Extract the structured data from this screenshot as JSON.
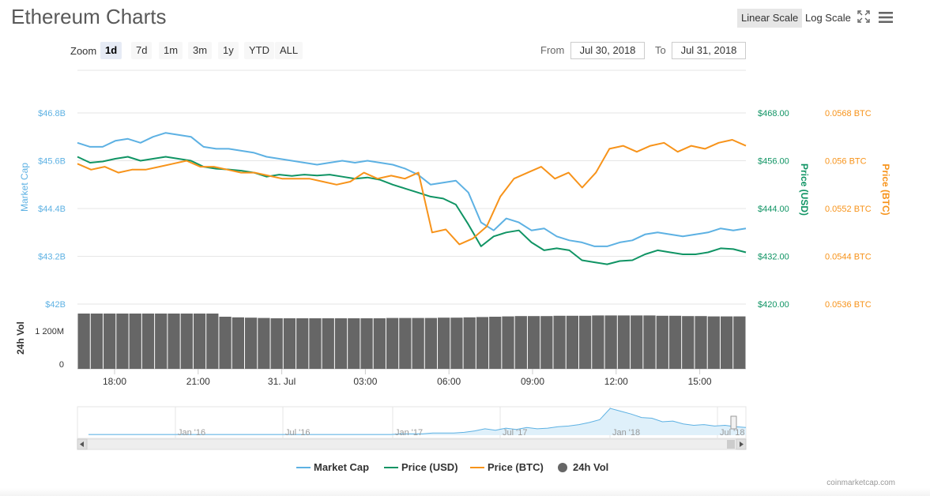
{
  "title": "Ethereum Charts",
  "scale": {
    "linear": "Linear Scale",
    "log": "Log Scale"
  },
  "zoom": {
    "label": "Zoom",
    "options": [
      "1d",
      "7d",
      "1m",
      "3m",
      "1y",
      "YTD",
      "ALL"
    ],
    "active": "1d"
  },
  "range": {
    "from_label": "From",
    "from": "Jul 30, 2018",
    "to_label": "To",
    "to": "Jul 31, 2018"
  },
  "icons": {
    "fullscreen": "fullscreen-icon",
    "menu": "hamburger-menu-icon"
  },
  "colors": {
    "market_cap": "#5db1e3",
    "price_usd": "#109464",
    "price_btc": "#f7931a",
    "volume": "#666666",
    "grid": "#e6e6e6"
  },
  "credit": "coinmarketcap.com",
  "chart_data": {
    "type": "line",
    "x_tick_labels": [
      "18:00",
      "21:00",
      "31. Jul",
      "03:00",
      "06:00",
      "09:00",
      "12:00",
      "15:00"
    ],
    "axes": {
      "market_cap": {
        "label": "Market Cap",
        "ticks": [
          "$46.8B",
          "$45.6B",
          "$44.4B",
          "$43.2B",
          "$42B"
        ],
        "range": [
          42,
          46.8
        ],
        "unit": "B USD"
      },
      "price_usd": {
        "label": "Price (USD)",
        "ticks": [
          "$468.00",
          "$456.00",
          "$444.00",
          "$432.00",
          "$420.00"
        ],
        "range": [
          420,
          468
        ]
      },
      "price_btc": {
        "label": "Price (BTC)",
        "ticks": [
          "0.0568 BTC",
          "0.056 BTC",
          "0.0552 BTC",
          "0.0544 BTC",
          "0.0536 BTC"
        ],
        "range": [
          0.0536,
          0.0568
        ]
      },
      "volume": {
        "label": "24h Vol",
        "ticks": [
          "1 200M",
          "0"
        ],
        "range": [
          0,
          1800
        ]
      }
    },
    "series": [
      {
        "name": "Market Cap",
        "axis": "market_cap",
        "values": [
          46.05,
          45.95,
          45.95,
          46.1,
          46.15,
          46.05,
          46.2,
          46.3,
          46.25,
          46.2,
          45.95,
          45.9,
          45.9,
          45.85,
          45.8,
          45.7,
          45.65,
          45.6,
          45.55,
          45.5,
          45.55,
          45.6,
          45.55,
          45.6,
          45.55,
          45.5,
          45.4,
          45.25,
          45.0,
          45.05,
          45.1,
          44.8,
          44.05,
          43.85,
          44.15,
          44.05,
          43.85,
          43.9,
          43.7,
          43.6,
          43.55,
          43.45,
          43.45,
          43.55,
          43.6,
          43.75,
          43.8,
          43.75,
          43.7,
          43.75,
          43.8,
          43.9,
          43.85,
          43.9
        ]
      },
      {
        "name": "Price (USD)",
        "axis": "price_usd",
        "values": [
          457.0,
          455.5,
          455.8,
          456.5,
          457.0,
          456.0,
          456.5,
          457.0,
          456.5,
          456.0,
          454.5,
          454.0,
          453.8,
          453.5,
          453.0,
          452.0,
          452.5,
          452.2,
          452.5,
          452.3,
          452.5,
          452.0,
          451.5,
          451.8,
          451.2,
          450.0,
          449.0,
          448.0,
          447.0,
          446.5,
          445.0,
          440.0,
          434.5,
          437.0,
          438.0,
          438.5,
          435.5,
          433.5,
          434.0,
          433.5,
          431.0,
          430.5,
          430.0,
          430.8,
          431.0,
          432.5,
          433.5,
          433.0,
          432.5,
          432.5,
          433.0,
          434.0,
          433.8,
          433.0
        ]
      },
      {
        "name": "Price (BTC)",
        "axis": "price_btc",
        "values": [
          0.05595,
          0.05585,
          0.0559,
          0.0558,
          0.05585,
          0.05585,
          0.0559,
          0.05595,
          0.056,
          0.0559,
          0.0559,
          0.05585,
          0.0558,
          0.0558,
          0.05575,
          0.0557,
          0.0557,
          0.0557,
          0.05565,
          0.0556,
          0.05565,
          0.0558,
          0.0557,
          0.05575,
          0.0557,
          0.0558,
          0.0548,
          0.05485,
          0.0546,
          0.0547,
          0.0549,
          0.0554,
          0.0557,
          0.0558,
          0.0559,
          0.0557,
          0.0558,
          0.05555,
          0.0558,
          0.0562,
          0.05625,
          0.05615,
          0.05625,
          0.0563,
          0.05615,
          0.05625,
          0.0562,
          0.0563,
          0.05635,
          0.05625
        ]
      },
      {
        "name": "24h Vol",
        "axis": "volume",
        "kind": "column",
        "values": [
          1750,
          1750,
          1750,
          1750,
          1750,
          1750,
          1750,
          1750,
          1750,
          1750,
          1750,
          1650,
          1630,
          1620,
          1610,
          1600,
          1600,
          1600,
          1600,
          1600,
          1600,
          1600,
          1600,
          1600,
          1610,
          1610,
          1610,
          1610,
          1620,
          1620,
          1630,
          1640,
          1650,
          1660,
          1670,
          1670,
          1670,
          1680,
          1680,
          1680,
          1690,
          1690,
          1690,
          1690,
          1690,
          1680,
          1680,
          1670,
          1670,
          1660,
          1660,
          1660
        ]
      }
    ],
    "navigator": {
      "tick_labels": [
        "Jan '16",
        "Jul '16",
        "Jan '17",
        "Jul '17",
        "Jan '18",
        "Jul '18"
      ],
      "values": [
        1,
        1,
        1,
        1,
        1,
        1,
        1,
        1,
        1,
        1,
        1,
        1,
        1,
        1,
        1,
        1,
        1,
        1,
        1,
        1,
        1,
        1,
        1,
        1,
        1,
        1,
        1,
        1,
        1,
        1,
        2,
        2,
        2,
        3,
        3,
        3,
        4,
        6,
        9,
        7,
        10,
        8,
        11,
        9,
        10,
        12,
        13,
        15,
        18,
        22,
        38,
        34,
        30,
        25,
        24,
        19,
        20,
        16,
        14,
        15,
        13,
        14,
        12,
        11
      ]
    },
    "legend": [
      "Market Cap",
      "Price (USD)",
      "Price (BTC)",
      "24h Vol"
    ],
    "legend_position": "bottom-center",
    "grid": true
  }
}
